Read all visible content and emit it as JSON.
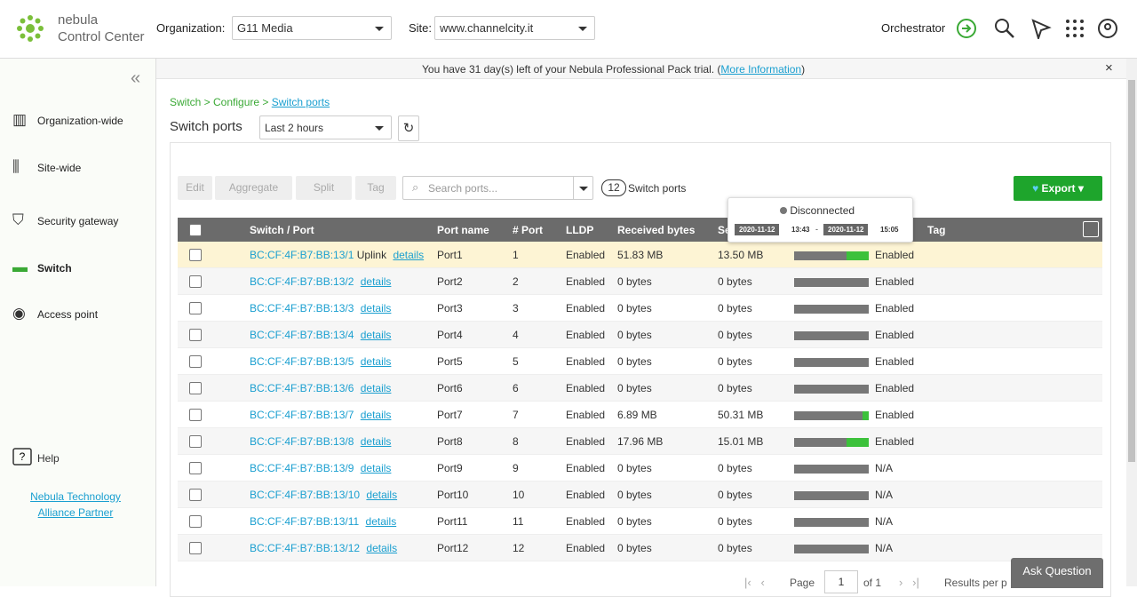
{
  "header": {
    "brand": "nebula",
    "product": "Control Center",
    "org_label": "Organization:",
    "org": "G11 Media",
    "site_label": "Site:",
    "site": "www.channelcity.it",
    "orchestrator": "Orchestrator"
  },
  "banner": {
    "text": "You have 31 day(s) left of your Nebula Professional Pack trial. (",
    "link": "More Information",
    "end": ")"
  },
  "sidebar": {
    "items": [
      "Organization-wide",
      "Site-wide",
      "Security gateway",
      "Switch",
      "Access point"
    ],
    "help": "Help",
    "partner": [
      "Nebula Technology",
      "Alliance Partner"
    ]
  },
  "breadcrumb": [
    "Switch > Configure >",
    "Switch ports"
  ],
  "title": "Switch ports",
  "range": "Last 2 hours",
  "toolbar": {
    "buttons": [
      "Edit",
      "Aggregate",
      "Split",
      "Tag"
    ],
    "search": "Search ports...",
    "count": 12,
    "count_label": "Switch ports",
    "export": "Export"
  },
  "tooltip": {
    "status": "Disconnected",
    "start_date": "2020-11-12",
    "start_time": "13:43",
    "sep": "-",
    "end_date": "2020-11-12",
    "end_time": "15:05"
  },
  "table": {
    "headers": [
      "Switch / Port",
      "Port name",
      "# Port",
      "LLDP",
      "Received bytes",
      "Se",
      "Tag"
    ],
    "rows": [
      {
        "port": "BC:CF:4F:B7:BB:13/1",
        "uplink": "Uplink",
        "details": "details",
        "name": "Port1",
        "number": 1,
        "lldp": "Enabled",
        "received": "51.83 MB",
        "sent": "13.50 MB",
        "online": 0.3,
        "status": "Enabled"
      },
      {
        "port": "BC:CF:4F:B7:BB:13/2",
        "details": "details",
        "name": "Port2",
        "number": 2,
        "lldp": "Enabled",
        "received": "0 bytes",
        "sent": "0 bytes",
        "online": 0,
        "status": "Enabled"
      },
      {
        "port": "BC:CF:4F:B7:BB:13/3",
        "details": "details",
        "name": "Port3",
        "number": 3,
        "lldp": "Enabled",
        "received": "0 bytes",
        "sent": "0 bytes",
        "online": 0,
        "status": "Enabled"
      },
      {
        "port": "BC:CF:4F:B7:BB:13/4",
        "details": "details",
        "name": "Port4",
        "number": 4,
        "lldp": "Enabled",
        "received": "0 bytes",
        "sent": "0 bytes",
        "online": 0,
        "status": "Enabled"
      },
      {
        "port": "BC:CF:4F:B7:BB:13/5",
        "details": "details",
        "name": "Port5",
        "number": 5,
        "lldp": "Enabled",
        "received": "0 bytes",
        "sent": "0 bytes",
        "online": 0,
        "status": "Enabled"
      },
      {
        "port": "BC:CF:4F:B7:BB:13/6",
        "details": "details",
        "name": "Port6",
        "number": 6,
        "lldp": "Enabled",
        "received": "0 bytes",
        "sent": "0 bytes",
        "online": 0,
        "status": "Enabled"
      },
      {
        "port": "BC:CF:4F:B7:BB:13/7",
        "details": "details",
        "name": "Port7",
        "number": 7,
        "lldp": "Enabled",
        "received": "6.89 MB",
        "sent": "50.31 MB",
        "online": 0.08,
        "status": "Enabled"
      },
      {
        "port": "BC:CF:4F:B7:BB:13/8",
        "details": "details",
        "name": "Port8",
        "number": 8,
        "lldp": "Enabled",
        "received": "17.96 MB",
        "sent": "15.01 MB",
        "online": 0.3,
        "status": "Enabled"
      },
      {
        "port": "BC:CF:4F:B7:BB:13/9",
        "details": "details",
        "name": "Port9",
        "number": 9,
        "lldp": "Enabled",
        "received": "0 bytes",
        "sent": "0 bytes",
        "online": 0,
        "status": "N/A"
      },
      {
        "port": "BC:CF:4F:B7:BB:13/10",
        "details": "details",
        "name": "Port10",
        "number": 10,
        "lldp": "Enabled",
        "received": "0 bytes",
        "sent": "0 bytes",
        "online": 0,
        "status": "N/A"
      },
      {
        "port": "BC:CF:4F:B7:BB:13/11",
        "details": "details",
        "name": "Port11",
        "number": 11,
        "lldp": "Enabled",
        "received": "0 bytes",
        "sent": "0 bytes",
        "online": 0,
        "status": "N/A"
      },
      {
        "port": "BC:CF:4F:B7:BB:13/12",
        "details": "details",
        "name": "Port12",
        "number": 12,
        "lldp": "Enabled",
        "received": "0 bytes",
        "sent": "0 bytes",
        "online": 0,
        "status": "N/A"
      }
    ]
  },
  "pagination": {
    "page_label": "Page",
    "page": 1,
    "of": "of 1",
    "results": "Results per p"
  },
  "ask": "Ask Question"
}
